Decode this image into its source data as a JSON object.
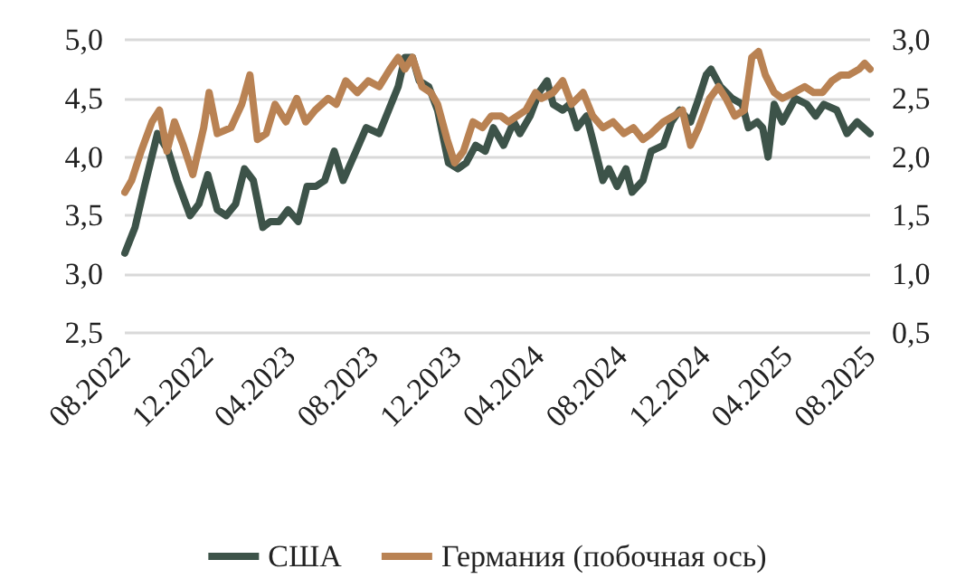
{
  "chart_data": {
    "type": "line",
    "grid": "y",
    "legend": "bottom",
    "marker": "none",
    "line_style": "solid",
    "xlim": [
      "2022-08-01",
      "2025-08-01"
    ],
    "xticks": [
      {
        "value": "2022-08-01",
        "label": "08.2022"
      },
      {
        "value": "2022-12-01",
        "label": "12.2022"
      },
      {
        "value": "2023-04-01",
        "label": "04.2023"
      },
      {
        "value": "2023-08-01",
        "label": "08.2023"
      },
      {
        "value": "2023-12-01",
        "label": "12.2023"
      },
      {
        "value": "2024-04-01",
        "label": "04.2024"
      },
      {
        "value": "2024-08-01",
        "label": "08.2024"
      },
      {
        "value": "2024-12-01",
        "label": "12.2024"
      },
      {
        "value": "2025-04-01",
        "label": "04.2025"
      },
      {
        "value": "2025-08-01",
        "label": "08.2025"
      }
    ],
    "ylim": [
      2.5,
      5.0
    ],
    "yticks": [
      {
        "value": 2.5,
        "label": "2,5"
      },
      {
        "value": 3.0,
        "label": "3,0"
      },
      {
        "value": 3.5,
        "label": "3,5"
      },
      {
        "value": 4.0,
        "label": "4,0"
      },
      {
        "value": 4.5,
        "label": "4,5"
      },
      {
        "value": 5.0,
        "label": "5,0"
      }
    ],
    "y2lim": [
      0.5,
      3.0
    ],
    "y2ticks": [
      {
        "value": 0.5,
        "label": "0,5"
      },
      {
        "value": 1.0,
        "label": "1,0"
      },
      {
        "value": 1.5,
        "label": "1,5"
      },
      {
        "value": 2.0,
        "label": "2,0"
      },
      {
        "value": 2.5,
        "label": "2,5"
      },
      {
        "value": 3.0,
        "label": "3,0"
      }
    ],
    "series": [
      {
        "name": "США",
        "color": "#3d5349",
        "x": [
          "2022-08-01",
          "2022-08-16",
          "2022-08-30",
          "2022-09-18",
          "2022-10-04",
          "2022-10-17",
          "2022-11-05",
          "2022-11-18",
          "2022-12-01",
          "2022-12-15",
          "2022-12-28",
          "2023-01-11",
          "2023-01-24",
          "2023-02-06",
          "2023-02-20",
          "2023-03-03",
          "2023-03-16",
          "2023-03-29",
          "2023-04-13",
          "2023-04-26",
          "2023-05-09",
          "2023-05-22",
          "2023-06-05",
          "2023-06-18",
          "2023-07-07",
          "2023-07-22",
          "2023-08-10",
          "2023-08-24",
          "2023-09-07",
          "2023-09-17",
          "2023-09-28",
          "2023-10-08",
          "2023-10-22",
          "2023-11-04",
          "2023-11-20",
          "2023-12-04",
          "2023-12-16",
          "2023-12-30",
          "2024-01-13",
          "2024-01-25",
          "2024-02-09",
          "2024-02-24",
          "2024-03-04",
          "2024-03-19",
          "2024-04-01",
          "2024-04-13",
          "2024-04-22",
          "2024-05-06",
          "2024-05-16",
          "2024-05-27",
          "2024-06-10",
          "2024-06-19",
          "2024-07-04",
          "2024-07-13",
          "2024-07-25",
          "2024-08-07",
          "2024-08-16",
          "2024-09-01",
          "2024-09-13",
          "2024-10-01",
          "2024-10-13",
          "2024-10-25",
          "2024-11-10",
          "2024-11-22",
          "2024-12-03",
          "2024-12-10",
          "2024-12-24",
          "2025-01-10",
          "2025-01-25",
          "2025-02-03",
          "2025-02-16",
          "2025-02-24",
          "2025-03-04",
          "2025-03-13",
          "2025-03-25",
          "2025-04-13",
          "2025-04-30",
          "2025-05-13",
          "2025-05-25",
          "2025-06-13",
          "2025-06-28",
          "2025-07-13",
          "2025-08-01"
        ],
        "values": [
          3.18,
          3.4,
          3.75,
          4.2,
          4.05,
          3.8,
          3.5,
          3.6,
          3.85,
          3.55,
          3.5,
          3.6,
          3.9,
          3.8,
          3.4,
          3.45,
          3.45,
          3.55,
          3.45,
          3.75,
          3.75,
          3.8,
          4.05,
          3.8,
          4.05,
          4.25,
          4.2,
          4.4,
          4.6,
          4.85,
          4.85,
          4.65,
          4.6,
          4.4,
          3.95,
          3.9,
          3.95,
          4.1,
          4.05,
          4.25,
          4.1,
          4.3,
          4.2,
          4.35,
          4.55,
          4.65,
          4.45,
          4.4,
          4.45,
          4.25,
          4.35,
          4.15,
          3.8,
          3.9,
          3.75,
          3.9,
          3.7,
          3.8,
          4.05,
          4.1,
          4.3,
          4.4,
          4.3,
          4.5,
          4.7,
          4.75,
          4.6,
          4.5,
          4.45,
          4.25,
          4.3,
          4.25,
          4.0,
          4.45,
          4.3,
          4.5,
          4.45,
          4.35,
          4.45,
          4.4,
          4.2,
          4.3,
          4.2
        ]
      },
      {
        "name": "Германия (побочная ось)",
        "color": "#b98253",
        "axis": "y2",
        "x": [
          "2022-08-01",
          "2022-08-11",
          "2022-08-25",
          "2022-09-10",
          "2022-09-21",
          "2022-10-02",
          "2022-10-13",
          "2022-10-26",
          "2022-11-09",
          "2022-11-25",
          "2022-12-03",
          "2022-12-15",
          "2023-01-04",
          "2023-01-20",
          "2023-02-01",
          "2023-02-12",
          "2023-02-25",
          "2023-03-10",
          "2023-03-26",
          "2023-04-11",
          "2023-04-24",
          "2023-05-08",
          "2023-05-27",
          "2023-06-08",
          "2023-06-22",
          "2023-07-09",
          "2023-07-25",
          "2023-08-10",
          "2023-08-26",
          "2023-09-07",
          "2023-09-17",
          "2023-09-28",
          "2023-10-12",
          "2023-10-25",
          "2023-11-04",
          "2023-11-18",
          "2023-11-29",
          "2023-12-12",
          "2023-12-26",
          "2024-01-09",
          "2024-01-22",
          "2024-02-05",
          "2024-02-16",
          "2024-02-29",
          "2024-03-13",
          "2024-03-27",
          "2024-04-05",
          "2024-04-22",
          "2024-05-06",
          "2024-05-19",
          "2024-06-05",
          "2024-06-19",
          "2024-07-04",
          "2024-07-19",
          "2024-08-04",
          "2024-08-18",
          "2024-09-01",
          "2024-09-13",
          "2024-10-01",
          "2024-10-16",
          "2024-10-29",
          "2024-11-10",
          "2024-11-22",
          "2024-12-08",
          "2024-12-21",
          "2025-01-01",
          "2025-01-14",
          "2025-01-28",
          "2025-02-08",
          "2025-02-18",
          "2025-02-28",
          "2025-03-13",
          "2025-03-25",
          "2025-04-11",
          "2025-04-27",
          "2025-05-10",
          "2025-05-23",
          "2025-06-06",
          "2025-06-19",
          "2025-07-01",
          "2025-07-16",
          "2025-07-24",
          "2025-08-01"
        ],
        "values": [
          1.7,
          1.8,
          2.05,
          2.3,
          2.4,
          2.05,
          2.3,
          2.1,
          1.85,
          2.25,
          2.55,
          2.2,
          2.25,
          2.45,
          2.7,
          2.15,
          2.2,
          2.45,
          2.3,
          2.5,
          2.3,
          2.4,
          2.5,
          2.45,
          2.65,
          2.55,
          2.65,
          2.6,
          2.75,
          2.85,
          2.75,
          2.85,
          2.6,
          2.55,
          2.45,
          2.15,
          1.95,
          2.05,
          2.3,
          2.25,
          2.35,
          2.35,
          2.3,
          2.35,
          2.4,
          2.55,
          2.5,
          2.55,
          2.65,
          2.45,
          2.55,
          2.35,
          2.25,
          2.3,
          2.2,
          2.25,
          2.15,
          2.2,
          2.3,
          2.35,
          2.4,
          2.1,
          2.25,
          2.5,
          2.6,
          2.5,
          2.35,
          2.4,
          2.85,
          2.9,
          2.7,
          2.55,
          2.5,
          2.55,
          2.6,
          2.55,
          2.55,
          2.65,
          2.7,
          2.7,
          2.75,
          2.8,
          2.75
        ]
      }
    ]
  }
}
